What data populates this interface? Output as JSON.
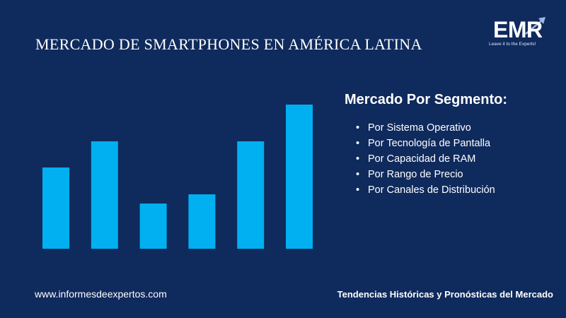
{
  "title": "MERCADO DE SMARTPHONES EN AMÉRICA LATINA",
  "logo": {
    "brand": "EMR",
    "tagline": "Leave it to the Experts!"
  },
  "colors": {
    "background": "#0f2a5c",
    "bars": "#00b0f0",
    "text": "#ffffff"
  },
  "chart_data": {
    "type": "bar",
    "categories": [
      "",
      "",
      "",
      "",
      "",
      ""
    ],
    "values": [
      115,
      152,
      64,
      77,
      152,
      204
    ],
    "ylim": [
      0,
      212
    ],
    "title": "",
    "xlabel": "",
    "ylabel": "",
    "grid": false,
    "axes_visible": false
  },
  "segments": {
    "heading": "Mercado Por Segmento:",
    "items": [
      "Por Sistema Operativo",
      "Por Tecnología de Pantalla",
      "Por Capacidad de RAM",
      "Por Rango de Precio",
      "Por Canales de Distribución"
    ]
  },
  "footer": {
    "website": "www.informesdeexpertos.com",
    "tagline": "Tendencias Históricas y Pronósticas del Mercado"
  }
}
